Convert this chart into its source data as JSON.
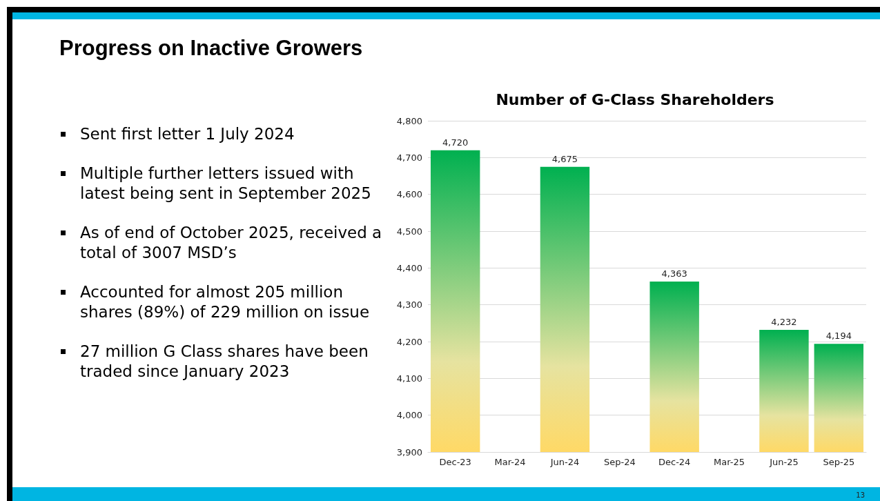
{
  "chart_data": {
    "type": "bar",
    "title": "Progress on Inactive Growers",
    "subtitle": "Number of G-Class Shareholders",
    "annotations": [
      "Sent first letter 1 July 2024",
      "Multiple further letters issued with latest being sent in September 2025",
      "As of end of October 2025, received a total of 3007 MSD’s",
      "Accounted for almost 205 million shares (89%) of 229 million on issue",
      "27 million G Class shares have been traded since January 2023",
      "13"
    ],
    "categories": [
      "Dec-23",
      "Mar-24",
      "Jun-24",
      "Sep-24",
      "Dec-24",
      "Mar-25",
      "Jun-25",
      "Sep-25"
    ],
    "values": [
      4720,
      null,
      4675,
      null,
      4363,
      null,
      4232,
      4194
    ],
    "value_labels": [
      "4,720",
      null,
      "4,675",
      null,
      "4,363",
      null,
      "4,232",
      "4,194"
    ],
    "color": "#00b050",
    "ylim": [
      3900,
      4800
    ],
    "yticks": [
      {
        "value": 3900,
        "label": "3,900"
      },
      {
        "value": 4000,
        "label": "4,000"
      },
      {
        "value": 4100,
        "label": "4,100"
      },
      {
        "value": 4200,
        "label": "4,200"
      },
      {
        "value": 4300,
        "label": "4,300"
      },
      {
        "value": 4400,
        "label": "4,400"
      },
      {
        "value": 4500,
        "label": "4,500"
      },
      {
        "value": 4600,
        "label": "4,600"
      },
      {
        "value": 4700,
        "label": "4,700"
      },
      {
        "value": 4800,
        "label": "4,800"
      }
    ],
    "grid": "y"
  }
}
